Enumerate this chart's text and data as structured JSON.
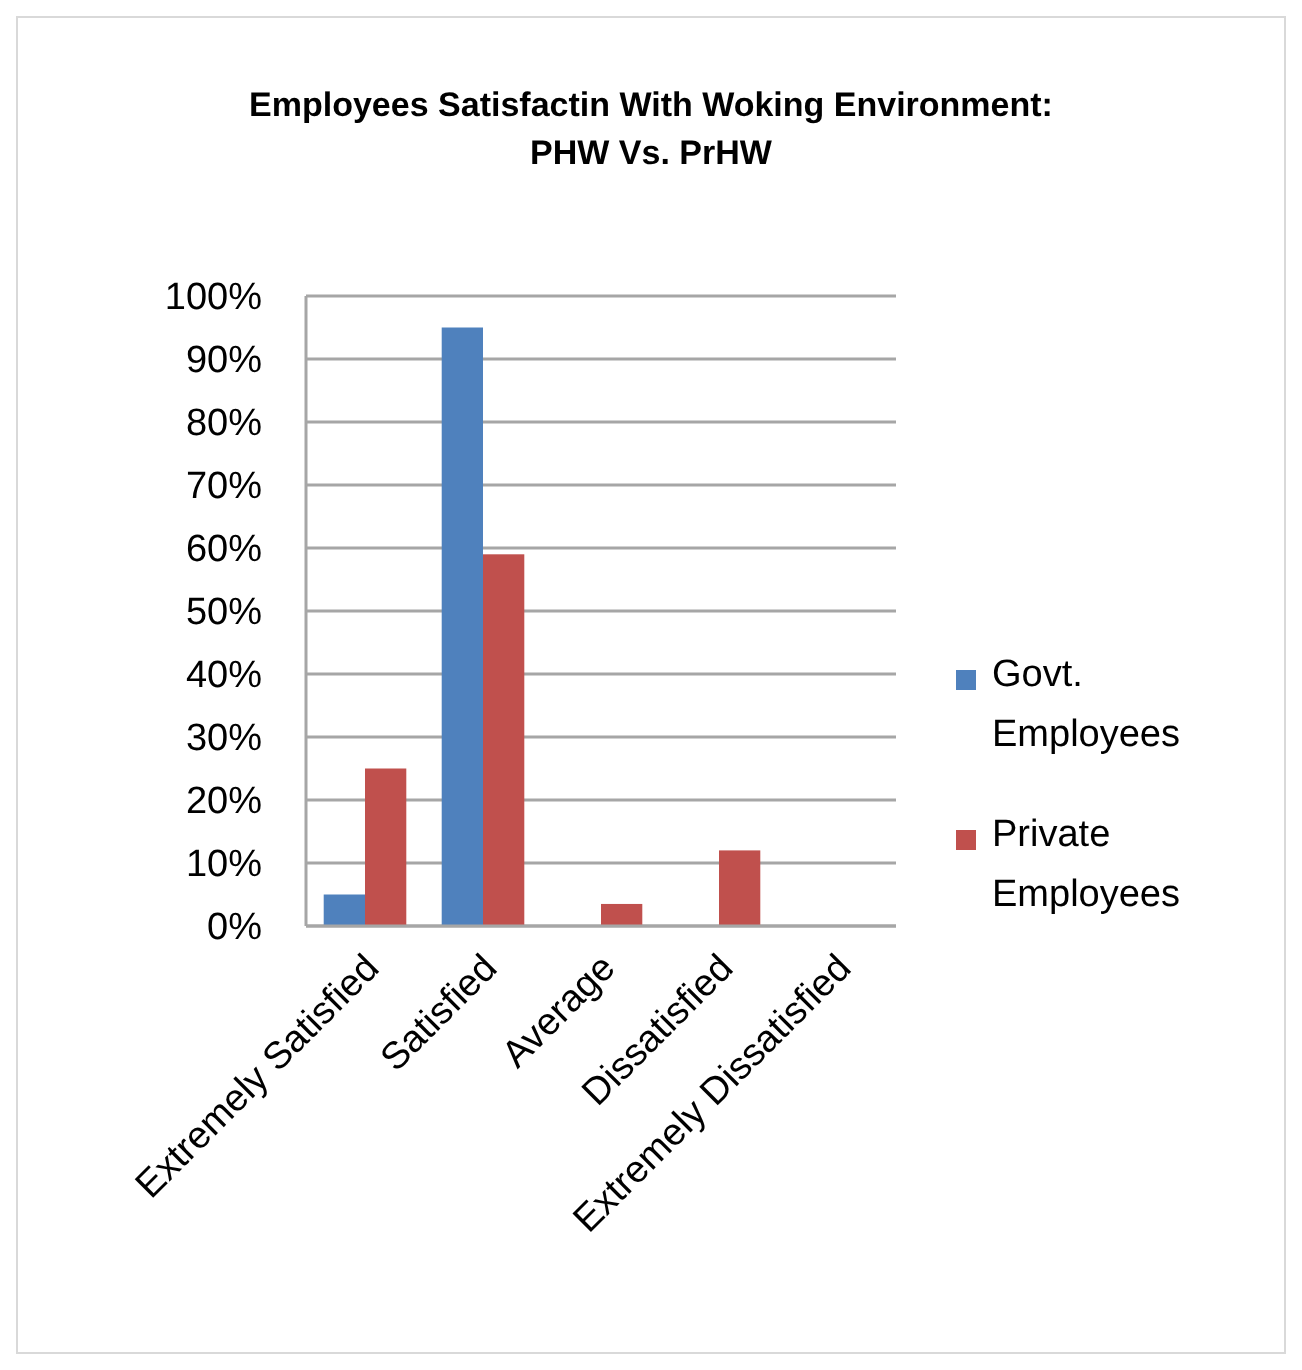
{
  "chart_data": {
    "type": "bar",
    "title": "Employees Satisfactin With Woking Environment: PHW Vs. PrHW",
    "categories": [
      "Extremely Satisfied",
      "Satisfied",
      "Average",
      "Dissatisfied",
      "Extremely Dissatisfied"
    ],
    "series": [
      {
        "name": "Govt. Employees",
        "color": "#4f81bd",
        "values": [
          5,
          95,
          0,
          0,
          0
        ]
      },
      {
        "name": "Private Employees",
        "color": "#c0504d",
        "values": [
          25,
          59,
          3.5,
          12,
          0
        ]
      }
    ],
    "ylim": [
      0,
      100
    ],
    "yticks": [
      {
        "value": 0,
        "label": "0%"
      },
      {
        "value": 10,
        "label": "10%"
      },
      {
        "value": 20,
        "label": "20%"
      },
      {
        "value": 30,
        "label": "30%"
      },
      {
        "value": 40,
        "label": "40%"
      },
      {
        "value": 50,
        "label": "50%"
      },
      {
        "value": 60,
        "label": "60%"
      },
      {
        "value": 70,
        "label": "70%"
      },
      {
        "value": 80,
        "label": "80%"
      },
      {
        "value": 90,
        "label": "90%"
      },
      {
        "value": 100,
        "label": "100%"
      }
    ],
    "grid": "y",
    "legend": "right"
  }
}
